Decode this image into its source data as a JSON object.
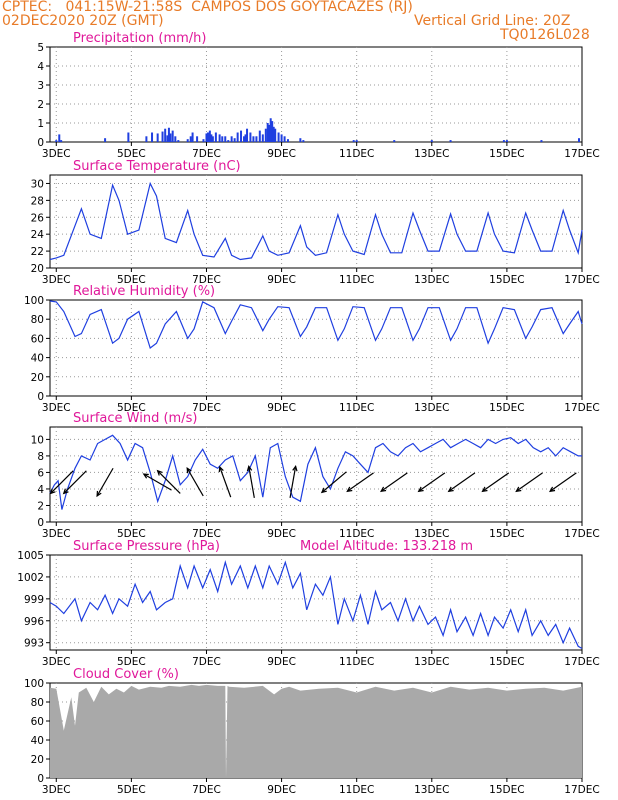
{
  "header": {
    "line1": "CPTEC:   041:15W-21:58S  CAMPOS DOS GOYTACAZES (RJ)",
    "line2": "02DEC2020 20Z (GMT)",
    "grid_note": "Vertical Grid Line: 20Z",
    "code": "TQ0126L028"
  },
  "colors": {
    "header": "#e87b28",
    "title": "#e0189a",
    "series": "#1f3fe0",
    "cloud": "#a9a9a9",
    "grid": "#9a9a9a"
  },
  "x_tick_labels": [
    "3DEC",
    "5DEC",
    "7DEC",
    "9DEC",
    "11DEC",
    "13DEC",
    "15DEC",
    "17DEC"
  ],
  "chart_data": [
    {
      "id": "precip",
      "type": "bar",
      "title": "Precipitation (mm/h)",
      "ylim": [
        0,
        5
      ],
      "yticks": [
        0,
        1,
        2,
        3,
        4,
        5
      ],
      "x_range_days": [
        2.833,
        17.0
      ],
      "x": [
        3.0,
        3.08,
        3.13,
        4.3,
        4.92,
        5.4,
        5.55,
        5.7,
        5.83,
        5.9,
        5.96,
        6.0,
        6.04,
        6.1,
        6.17,
        6.25,
        6.5,
        6.58,
        6.63,
        6.75,
        6.92,
        7.0,
        7.04,
        7.09,
        7.13,
        7.17,
        7.25,
        7.35,
        7.42,
        7.5,
        7.58,
        7.67,
        7.75,
        7.83,
        7.92,
        8.0,
        8.04,
        8.08,
        8.17,
        8.25,
        8.33,
        8.42,
        8.5,
        8.58,
        8.63,
        8.67,
        8.71,
        8.75,
        8.79,
        8.83,
        8.92,
        9.0,
        9.08,
        9.17,
        9.5,
        9.58,
        10.92,
        11.0,
        12.0,
        13.0,
        13.5,
        14.92,
        15.0,
        15.92,
        16.92
      ],
      "values": [
        0.1,
        0.4,
        0.1,
        0.2,
        0.5,
        0.3,
        0.5,
        0.45,
        0.55,
        0.7,
        0.35,
        0.75,
        0.45,
        0.6,
        0.3,
        0.1,
        0.15,
        0.3,
        0.5,
        0.3,
        0.15,
        0.45,
        0.5,
        0.6,
        0.4,
        0.3,
        0.5,
        0.4,
        0.3,
        0.3,
        0.1,
        0.3,
        0.2,
        0.5,
        0.6,
        0.3,
        0.4,
        0.7,
        0.5,
        0.3,
        0.3,
        0.6,
        0.4,
        0.7,
        1.0,
        0.9,
        1.25,
        1.1,
        0.8,
        0.7,
        0.5,
        0.4,
        0.3,
        0.15,
        0.2,
        0.1,
        0.1,
        0.1,
        0.1,
        0.1,
        0.1,
        0.1,
        0.1,
        0.1,
        0.2
      ]
    },
    {
      "id": "temp",
      "type": "line",
      "title": "Surface Temperature (nC)",
      "ylim": [
        20,
        31
      ],
      "yticks": [
        20,
        22,
        24,
        26,
        28,
        30
      ],
      "x_range_days": [
        2.833,
        17.0
      ],
      "x": [
        2.833,
        3.0,
        3.2,
        3.5,
        3.67,
        3.9,
        4.2,
        4.5,
        4.67,
        4.9,
        5.2,
        5.5,
        5.67,
        5.9,
        6.2,
        6.5,
        6.67,
        6.9,
        7.2,
        7.5,
        7.67,
        7.9,
        8.2,
        8.5,
        8.67,
        8.9,
        9.2,
        9.5,
        9.67,
        9.9,
        10.2,
        10.5,
        10.67,
        10.9,
        11.2,
        11.5,
        11.67,
        11.9,
        12.2,
        12.5,
        12.67,
        12.9,
        13.2,
        13.5,
        13.67,
        13.9,
        14.2,
        14.5,
        14.67,
        14.9,
        15.2,
        15.5,
        15.67,
        15.9,
        16.2,
        16.5,
        16.67,
        16.9,
        17.0
      ],
      "values": [
        21.0,
        21.2,
        21.5,
        25.0,
        27.0,
        24.0,
        23.5,
        29.8,
        28.0,
        24.0,
        24.5,
        30.0,
        28.5,
        23.5,
        23.0,
        26.8,
        24.0,
        21.5,
        21.3,
        23.5,
        21.5,
        21.0,
        21.2,
        23.8,
        22.0,
        21.5,
        21.8,
        25.0,
        22.5,
        21.5,
        21.8,
        26.3,
        24.0,
        22.0,
        21.6,
        26.3,
        24.0,
        21.8,
        21.8,
        26.5,
        24.5,
        22.0,
        22.0,
        26.4,
        24.0,
        22.0,
        22.0,
        26.5,
        24.0,
        22.0,
        21.8,
        26.5,
        24.5,
        22.0,
        22.0,
        26.8,
        24.5,
        21.8,
        24.5
      ]
    },
    {
      "id": "rh",
      "type": "line",
      "title": "Relative Humidity (%)",
      "ylim": [
        0,
        100
      ],
      "yticks": [
        0,
        20,
        40,
        60,
        80,
        100
      ],
      "x_range_days": [
        2.833,
        17.0
      ],
      "x": [
        2.833,
        3.0,
        3.2,
        3.5,
        3.67,
        3.9,
        4.2,
        4.5,
        4.67,
        4.9,
        5.2,
        5.5,
        5.67,
        5.9,
        6.2,
        6.5,
        6.67,
        6.9,
        7.2,
        7.5,
        7.67,
        7.9,
        8.2,
        8.5,
        8.67,
        8.9,
        9.2,
        9.5,
        9.67,
        9.9,
        10.2,
        10.5,
        10.67,
        10.9,
        11.2,
        11.5,
        11.67,
        11.9,
        12.2,
        12.5,
        12.67,
        12.9,
        13.2,
        13.5,
        13.67,
        13.9,
        14.2,
        14.5,
        14.67,
        14.9,
        15.2,
        15.5,
        15.67,
        15.9,
        16.2,
        16.5,
        16.67,
        16.9,
        17.0
      ],
      "values": [
        99,
        98,
        88,
        62,
        65,
        85,
        90,
        55,
        60,
        80,
        88,
        50,
        55,
        75,
        88,
        60,
        70,
        98,
        92,
        65,
        78,
        95,
        92,
        68,
        80,
        93,
        92,
        62,
        72,
        92,
        92,
        58,
        70,
        93,
        92,
        58,
        70,
        92,
        92,
        58,
        70,
        92,
        92,
        58,
        70,
        92,
        92,
        55,
        70,
        92,
        90,
        60,
        72,
        90,
        92,
        65,
        75,
        88,
        75
      ]
    },
    {
      "id": "wind",
      "type": "line",
      "title": "Surface Wind (m/s)",
      "ylim": [
        0,
        11.5
      ],
      "yticks": [
        0,
        2,
        4,
        6,
        8,
        10
      ],
      "x_range_days": [
        2.833,
        17.0
      ],
      "x": [
        2.833,
        2.95,
        3.05,
        3.15,
        3.3,
        3.5,
        3.67,
        3.9,
        4.1,
        4.3,
        4.5,
        4.7,
        4.9,
        5.1,
        5.3,
        5.5,
        5.7,
        5.9,
        6.1,
        6.3,
        6.5,
        6.7,
        6.9,
        7.1,
        7.3,
        7.5,
        7.7,
        7.9,
        8.1,
        8.3,
        8.5,
        8.7,
        8.9,
        9.1,
        9.3,
        9.5,
        9.7,
        9.9,
        10.1,
        10.3,
        10.5,
        10.7,
        10.9,
        11.1,
        11.3,
        11.5,
        11.7,
        11.9,
        12.1,
        12.3,
        12.5,
        12.7,
        12.9,
        13.1,
        13.3,
        13.5,
        13.7,
        13.9,
        14.1,
        14.3,
        14.5,
        14.7,
        14.9,
        15.1,
        15.3,
        15.5,
        15.7,
        15.9,
        16.1,
        16.3,
        16.5,
        16.7,
        16.9,
        17.0
      ],
      "values": [
        3.5,
        4.5,
        5.0,
        1.5,
        4.0,
        6.5,
        8.0,
        7.5,
        9.5,
        10.0,
        10.5,
        9.5,
        7.5,
        9.5,
        9.0,
        6.0,
        2.5,
        5.0,
        8.0,
        4.5,
        5.5,
        7.5,
        8.8,
        7.0,
        6.5,
        7.5,
        8.0,
        5.0,
        6.0,
        8.0,
        3.0,
        9.0,
        9.5,
        5.5,
        3.0,
        2.5,
        7.0,
        9.0,
        5.5,
        4.0,
        6.5,
        8.5,
        8.0,
        7.0,
        6.0,
        9.0,
        9.5,
        8.5,
        8.0,
        9.0,
        9.5,
        8.5,
        9.0,
        9.5,
        10.0,
        9.0,
        9.5,
        10.0,
        9.5,
        9.0,
        10.0,
        9.5,
        10.0,
        10.2,
        9.5,
        10.0,
        9.0,
        8.5,
        9.0,
        8.0,
        9.0,
        8.5,
        8.0,
        8.0
      ]
    },
    {
      "id": "pres",
      "type": "line",
      "title": "Surface Pressure (hPa)",
      "annotation": "Model Altitude: 133.218 m",
      "ylim": [
        992,
        1005
      ],
      "yticks": [
        993,
        996,
        999,
        1002,
        1005
      ],
      "x_range_days": [
        2.833,
        17.0
      ],
      "x": [
        2.833,
        3.0,
        3.2,
        3.5,
        3.67,
        3.9,
        4.1,
        4.3,
        4.5,
        4.67,
        4.9,
        5.1,
        5.3,
        5.5,
        5.67,
        5.9,
        6.1,
        6.3,
        6.5,
        6.67,
        6.9,
        7.1,
        7.3,
        7.5,
        7.67,
        7.9,
        8.1,
        8.3,
        8.5,
        8.67,
        8.9,
        9.1,
        9.3,
        9.5,
        9.67,
        9.9,
        10.1,
        10.3,
        10.5,
        10.67,
        10.9,
        11.1,
        11.3,
        11.5,
        11.67,
        11.9,
        12.1,
        12.3,
        12.5,
        12.67,
        12.9,
        13.1,
        13.3,
        13.5,
        13.67,
        13.9,
        14.1,
        14.3,
        14.5,
        14.67,
        14.9,
        15.1,
        15.3,
        15.5,
        15.67,
        15.9,
        16.1,
        16.3,
        16.5,
        16.67,
        16.9,
        17.0
      ],
      "values": [
        998.5,
        998.0,
        997.0,
        999.0,
        996.0,
        998.5,
        997.5,
        999.5,
        997.0,
        999.0,
        998.0,
        1001.0,
        998.5,
        1000.0,
        997.5,
        998.5,
        999.0,
        1003.5,
        1000.5,
        1003.5,
        1000.5,
        1003.0,
        1000.0,
        1004.0,
        1001.0,
        1003.5,
        1000.5,
        1003.5,
        1000.5,
        1003.5,
        1001.0,
        1004.0,
        1000.5,
        1002.5,
        997.5,
        1001.0,
        999.5,
        1002.0,
        995.5,
        999.0,
        996.0,
        999.5,
        995.5,
        1000.0,
        997.5,
        998.5,
        996.0,
        999.0,
        996.0,
        998.0,
        995.5,
        996.5,
        994.0,
        997.5,
        994.5,
        996.5,
        994.0,
        997.0,
        994.0,
        996.5,
        995.0,
        997.5,
        994.5,
        997.5,
        994.0,
        996.0,
        994.0,
        995.5,
        993.0,
        995.0,
        992.5,
        992.2
      ]
    },
    {
      "id": "cloud",
      "type": "area",
      "title": "Cloud Cover (%)",
      "ylim": [
        0,
        100
      ],
      "yticks": [
        0,
        20,
        40,
        60,
        80,
        100
      ],
      "x_range_days": [
        2.833,
        17.0
      ],
      "x": [
        2.833,
        3.0,
        3.2,
        3.4,
        3.5,
        3.6,
        3.8,
        4.0,
        4.2,
        4.4,
        4.6,
        4.8,
        5.0,
        5.2,
        5.5,
        5.8,
        6.0,
        6.3,
        6.6,
        6.8,
        7.0,
        7.3,
        7.5,
        7.52,
        7.56,
        7.6,
        8.0,
        8.5,
        8.8,
        9.0,
        9.2,
        9.5,
        10.0,
        10.5,
        11.0,
        11.5,
        12.0,
        12.5,
        13.0,
        13.5,
        14.0,
        14.5,
        15.0,
        15.5,
        16.0,
        16.5,
        17.0
      ],
      "values": [
        95,
        94,
        50,
        85,
        55,
        90,
        95,
        80,
        96,
        88,
        94,
        90,
        97,
        93,
        96,
        95,
        97,
        96,
        98,
        97,
        98,
        97,
        97,
        0,
        97,
        96,
        95,
        97,
        88,
        94,
        96,
        92,
        94,
        95,
        90,
        96,
        92,
        95,
        90,
        96,
        93,
        95,
        92,
        94,
        95,
        92,
        96
      ]
    }
  ],
  "wind_arrows": [
    {
      "x": 3.15,
      "angle_deg": 225
    },
    {
      "x": 3.5,
      "angle_deg": 225
    },
    {
      "x": 4.3,
      "angle_deg": 240
    },
    {
      "x": 5.7,
      "angle_deg": 150
    },
    {
      "x": 6.0,
      "angle_deg": 135
    },
    {
      "x": 6.7,
      "angle_deg": 120
    },
    {
      "x": 7.5,
      "angle_deg": 110
    },
    {
      "x": 8.2,
      "angle_deg": 100
    },
    {
      "x": 9.3,
      "angle_deg": 80
    },
    {
      "x": 10.4,
      "angle_deg": 220
    },
    {
      "x": 11.1,
      "angle_deg": 215
    },
    {
      "x": 12.0,
      "angle_deg": 215
    },
    {
      "x": 13.0,
      "angle_deg": 215
    },
    {
      "x": 13.8,
      "angle_deg": 215
    },
    {
      "x": 14.7,
      "angle_deg": 215
    },
    {
      "x": 15.6,
      "angle_deg": 215
    },
    {
      "x": 16.5,
      "angle_deg": 215
    }
  ]
}
